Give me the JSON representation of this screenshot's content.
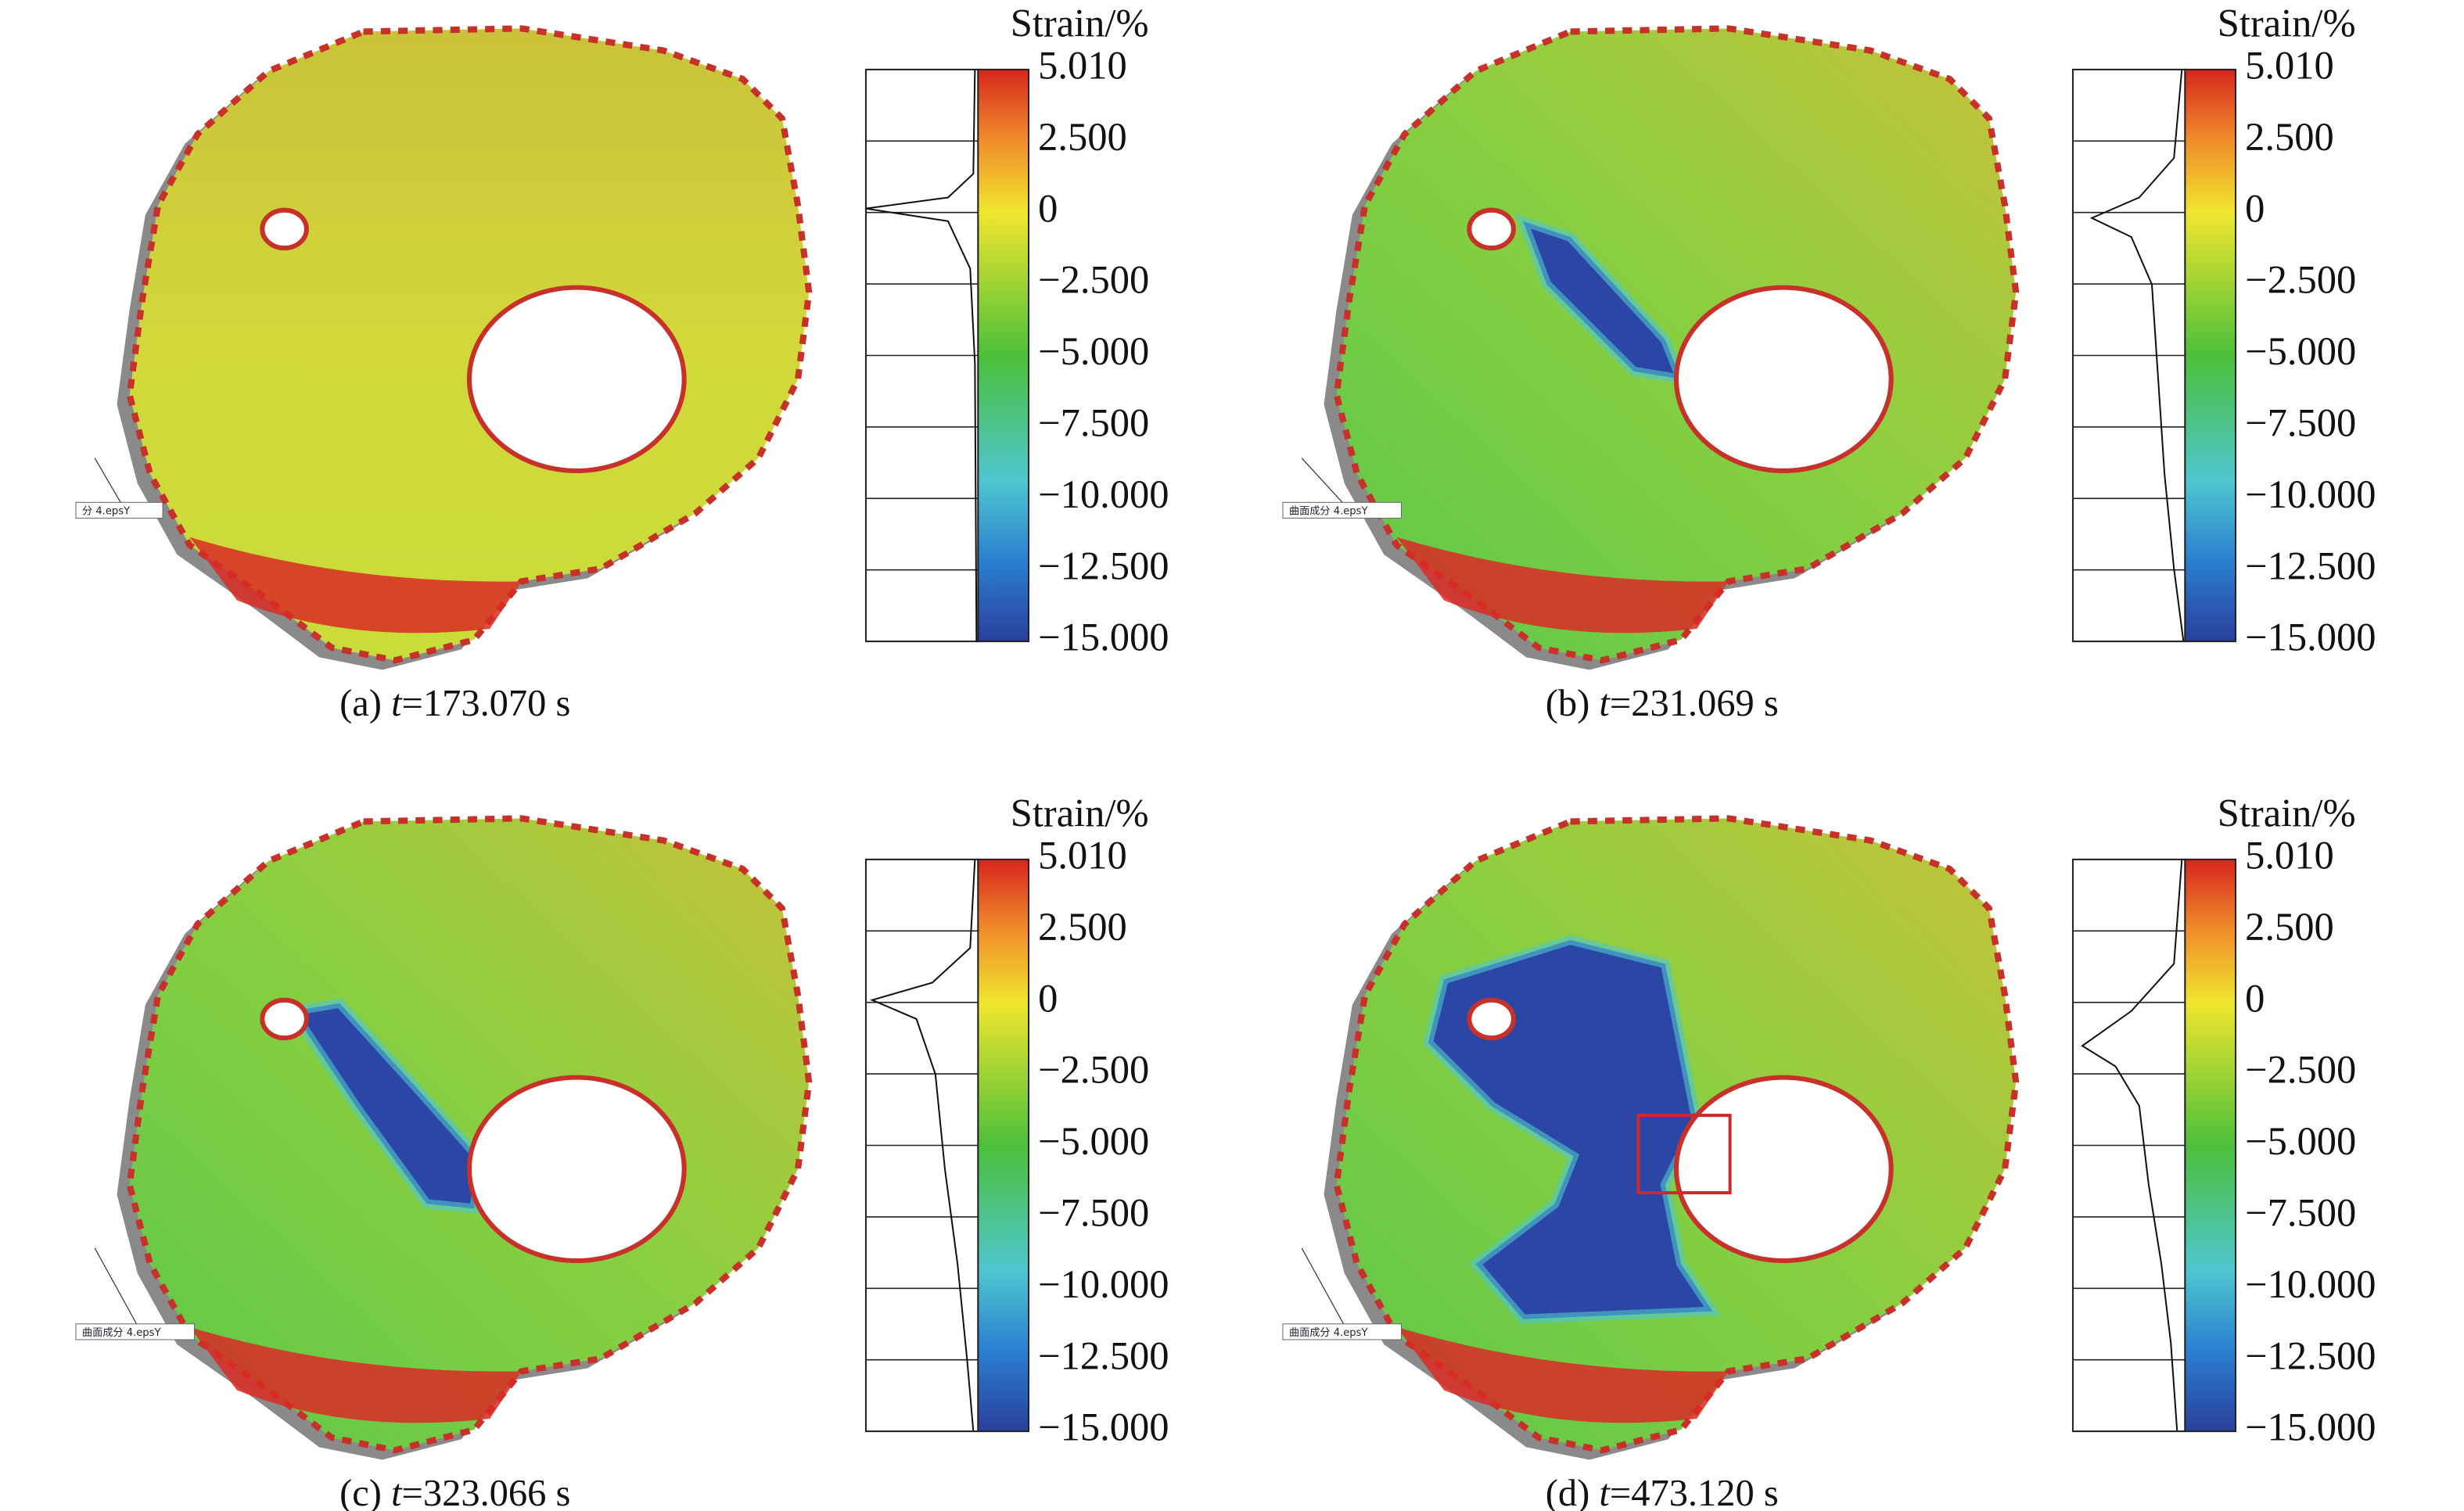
{
  "panels": [
    {
      "caption": {
        "label": "(a)",
        "variable": "t",
        "value": "=173.070 s"
      },
      "tag": "分 4.epsY",
      "colorbar": {
        "title": "Strain/%",
        "ticks": [
          "5.010",
          "2.500",
          "0",
          "−2.500",
          "−5.000",
          "−7.500",
          "−10.000",
          "−12.500",
          "−15.000"
        ]
      }
    },
    {
      "caption": {
        "label": "(b)",
        "variable": "t",
        "value": "=231.069 s"
      },
      "tag": "曲面成分 4.epsY",
      "colorbar": {
        "title": "Strain/%",
        "ticks": [
          "5.010",
          "2.500",
          "0",
          "−2.500",
          "−5.000",
          "−7.500",
          "−10.000",
          "−12.500",
          "−15.000"
        ]
      }
    },
    {
      "caption": {
        "label": "(c)",
        "variable": "t",
        "value": "=323.066 s"
      },
      "tag": "曲面成分 4.epsY",
      "colorbar": {
        "title": "Strain/%",
        "ticks": [
          "5.010",
          "2.500",
          "0",
          "−2.500",
          "−5.000",
          "−7.500",
          "−10.000",
          "−12.500",
          "−15.000"
        ]
      }
    },
    {
      "caption": {
        "label": "(d)",
        "variable": "t",
        "value": "=473.120 s"
      },
      "tag": "曲面成分 4.epsY",
      "colorbar": {
        "title": "Strain/%",
        "ticks": [
          "5.010",
          "2.500",
          "0",
          "−2.500",
          "−5.000",
          "−7.500",
          "−10.000",
          "−12.500",
          "−15.000"
        ]
      }
    }
  ]
}
